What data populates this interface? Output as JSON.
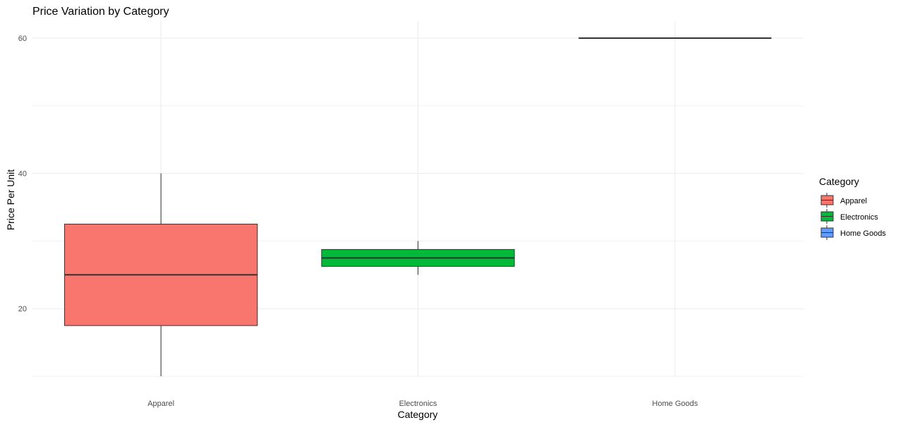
{
  "chart_data": {
    "type": "boxplot",
    "title": "Price Variation by Category",
    "xlabel": "Category",
    "ylabel": "Price Per Unit",
    "categories": [
      "Apparel",
      "Electronics",
      "Home Goods"
    ],
    "ylim": [
      10,
      62.5
    ],
    "yticks": [
      20,
      40,
      60
    ],
    "grid": true,
    "legend": {
      "title": "Category",
      "position": "right"
    },
    "boxes": [
      {
        "category": "Apparel",
        "min": 10,
        "q1": 17.5,
        "median": 25,
        "q3": 32.5,
        "max": 40,
        "color": "#F8766D"
      },
      {
        "category": "Electronics",
        "min": 25,
        "q1": 26.25,
        "median": 27.5,
        "q3": 28.75,
        "max": 30,
        "color": "#00BA38"
      },
      {
        "category": "Home Goods",
        "min": 60,
        "q1": 60,
        "median": 60,
        "q3": 60,
        "max": 60,
        "color": "#619CFF"
      }
    ]
  }
}
